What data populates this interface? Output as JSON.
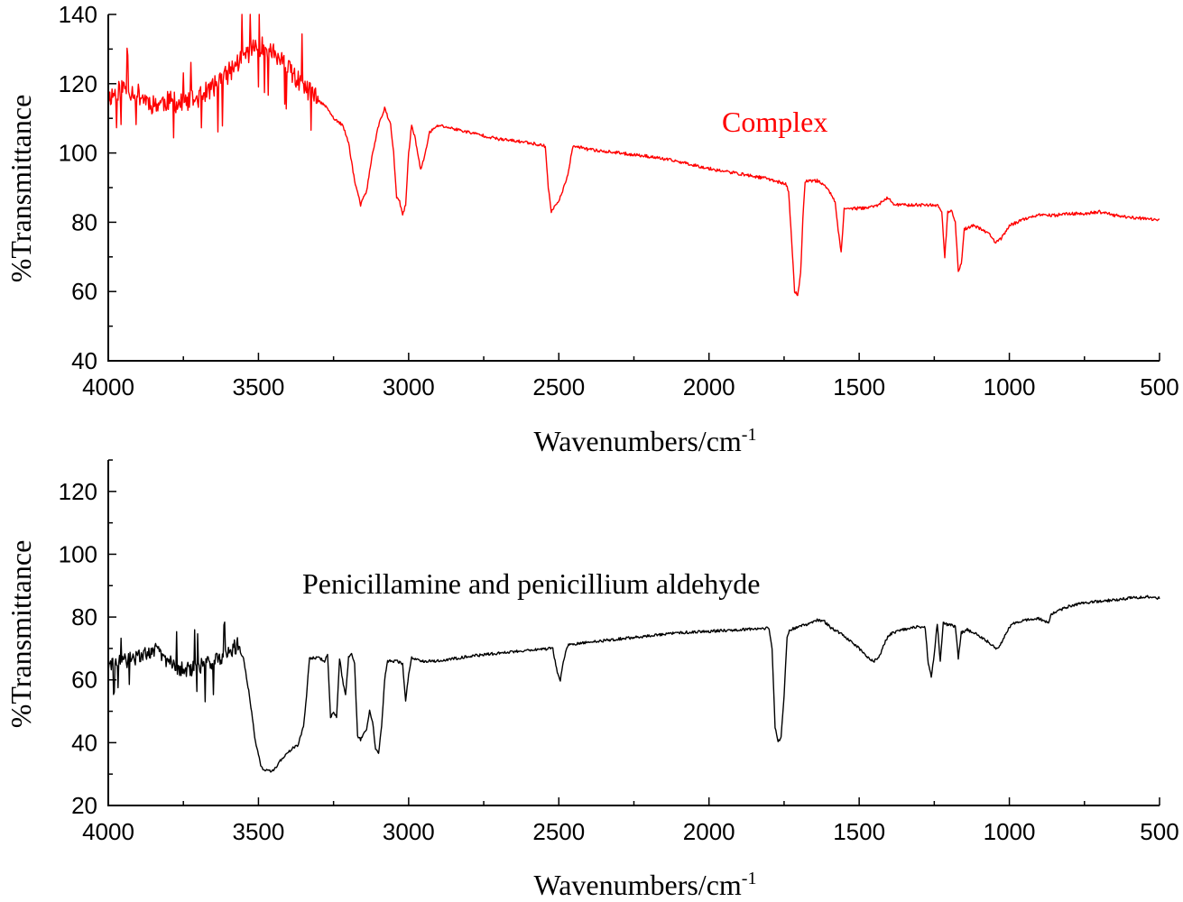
{
  "chart_data": [
    {
      "type": "line",
      "xlabel": "Wavenumbers/cm",
      "xlabel_sup": "-1",
      "ylabel": "%Transmittance",
      "xlim": [
        4000,
        500
      ],
      "ylim": [
        40,
        140
      ],
      "x_ticks": [
        4000,
        3500,
        3000,
        2500,
        2000,
        1500,
        1000,
        500
      ],
      "y_ticks": [
        40,
        60,
        80,
        100,
        120,
        140
      ],
      "grid": false,
      "series": [
        {
          "name": "Complex",
          "color": "#ff0000",
          "noise_above": 3300,
          "noise_amp": 6,
          "points": [
            [
              4000,
              116
            ],
            [
              3950,
              119
            ],
            [
              3900,
              117
            ],
            [
              3850,
              114
            ],
            [
              3800,
              115
            ],
            [
              3750,
              114
            ],
            [
              3700,
              116
            ],
            [
              3650,
              119
            ],
            [
              3600,
              123
            ],
            [
              3550,
              128
            ],
            [
              3500,
              131
            ],
            [
              3450,
              129
            ],
            [
              3400,
              124
            ],
            [
              3350,
              119
            ],
            [
              3300,
              115
            ],
            [
              3270,
              113
            ],
            [
              3250,
              110
            ],
            [
              3220,
              108
            ],
            [
              3200,
              103
            ],
            [
              3180,
              92
            ],
            [
              3160,
              85
            ],
            [
              3140,
              89
            ],
            [
              3120,
              100
            ],
            [
              3100,
              108
            ],
            [
              3080,
              113
            ],
            [
              3060,
              108
            ],
            [
              3050,
              100
            ],
            [
              3040,
              87
            ],
            [
              3030,
              86
            ],
            [
              3020,
              82
            ],
            [
              3010,
              85
            ],
            [
              3000,
              100
            ],
            [
              2990,
              108
            ],
            [
              2980,
              105
            ],
            [
              2960,
              95
            ],
            [
              2950,
              98
            ],
            [
              2930,
              106
            ],
            [
              2900,
              108
            ],
            [
              2850,
              107
            ],
            [
              2800,
              106
            ],
            [
              2700,
              104
            ],
            [
              2600,
              103
            ],
            [
              2545,
              102
            ],
            [
              2535,
              90
            ],
            [
              2525,
              83
            ],
            [
              2510,
              85
            ],
            [
              2490,
              88
            ],
            [
              2470,
              94
            ],
            [
              2455,
              101
            ],
            [
              2450,
              102
            ],
            [
              2400,
              101
            ],
            [
              2300,
              100
            ],
            [
              2200,
              99
            ],
            [
              2100,
              97.5
            ],
            [
              2000,
              95.5
            ],
            [
              1900,
              94
            ],
            [
              1800,
              92.5
            ],
            [
              1745,
              91
            ],
            [
              1735,
              89
            ],
            [
              1725,
              75
            ],
            [
              1715,
              60
            ],
            [
              1705,
              59
            ],
            [
              1695,
              65
            ],
            [
              1688,
              80
            ],
            [
              1680,
              92
            ],
            [
              1660,
              92
            ],
            [
              1640,
              92
            ],
            [
              1620,
              91
            ],
            [
              1600,
              89
            ],
            [
              1580,
              86
            ],
            [
              1570,
              78
            ],
            [
              1560,
              71
            ],
            [
              1550,
              84
            ],
            [
              1500,
              84
            ],
            [
              1450,
              84.5
            ],
            [
              1420,
              86
            ],
            [
              1405,
              87
            ],
            [
              1380,
              85
            ],
            [
              1300,
              85
            ],
            [
              1240,
              85
            ],
            [
              1225,
              83
            ],
            [
              1215,
              70
            ],
            [
              1205,
              83
            ],
            [
              1190,
              83
            ],
            [
              1180,
              80
            ],
            [
              1170,
              66
            ],
            [
              1160,
              68
            ],
            [
              1150,
              78
            ],
            [
              1120,
              79
            ],
            [
              1090,
              78
            ],
            [
              1060,
              76
            ],
            [
              1045,
              74
            ],
            [
              1030,
              75
            ],
            [
              1000,
              79
            ],
            [
              950,
              81
            ],
            [
              900,
              82
            ],
            [
              850,
              82
            ],
            [
              800,
              82.5
            ],
            [
              750,
              82.5
            ],
            [
              700,
              83
            ],
            [
              650,
              82
            ],
            [
              600,
              81.5
            ],
            [
              550,
              81
            ],
            [
              500,
              80.5
            ]
          ]
        }
      ]
    },
    {
      "type": "line",
      "xlabel": "Wavenumbers/cm",
      "xlabel_sup": "-1",
      "ylabel": "%Transmittance",
      "xlim": [
        4000,
        500
      ],
      "ylim": [
        20,
        130
      ],
      "x_ticks": [
        4000,
        3500,
        3000,
        2500,
        2000,
        1500,
        1000,
        500
      ],
      "y_ticks": [
        20,
        40,
        60,
        80,
        100,
        120
      ],
      "grid": false,
      "series": [
        {
          "name": "Penicillamine and penicillium aldehyde",
          "color": "#000000",
          "noise_above": 3560,
          "noise_amp": 5,
          "points": [
            [
              4000,
              64
            ],
            [
              3950,
              66
            ],
            [
              3900,
              67
            ],
            [
              3850,
              70
            ],
            [
              3800,
              66
            ],
            [
              3750,
              63
            ],
            [
              3700,
              64
            ],
            [
              3650,
              66
            ],
            [
              3600,
              69
            ],
            [
              3570,
              71
            ],
            [
              3550,
              67
            ],
            [
              3530,
              55
            ],
            [
              3510,
              40
            ],
            [
              3490,
              32
            ],
            [
              3470,
              31
            ],
            [
              3450,
              31
            ],
            [
              3430,
              34
            ],
            [
              3410,
              36
            ],
            [
              3390,
              38
            ],
            [
              3370,
              39
            ],
            [
              3350,
              45
            ],
            [
              3340,
              55
            ],
            [
              3330,
              67
            ],
            [
              3300,
              67
            ],
            [
              3280,
              66
            ],
            [
              3270,
              68
            ],
            [
              3260,
              48
            ],
            [
              3250,
              50
            ],
            [
              3240,
              48
            ],
            [
              3230,
              67
            ],
            [
              3220,
              60
            ],
            [
              3210,
              55
            ],
            [
              3200,
              67
            ],
            [
              3190,
              68
            ],
            [
              3180,
              65
            ],
            [
              3170,
              42
            ],
            [
              3160,
              41
            ],
            [
              3150,
              43
            ],
            [
              3140,
              44
            ],
            [
              3130,
              50
            ],
            [
              3120,
              47
            ],
            [
              3110,
              38
            ],
            [
              3100,
              37
            ],
            [
              3090,
              45
            ],
            [
              3080,
              60
            ],
            [
              3070,
              66
            ],
            [
              3040,
              66
            ],
            [
              3020,
              65
            ],
            [
              3010,
              53
            ],
            [
              3000,
              62
            ],
            [
              2990,
              67
            ],
            [
              2950,
              66
            ],
            [
              2900,
              66
            ],
            [
              2800,
              67.5
            ],
            [
              2700,
              68.5
            ],
            [
              2600,
              69.5
            ],
            [
              2520,
              70
            ],
            [
              2505,
              62
            ],
            [
              2495,
              60
            ],
            [
              2485,
              66
            ],
            [
              2470,
              71
            ],
            [
              2400,
              72
            ],
            [
              2300,
              73
            ],
            [
              2200,
              74
            ],
            [
              2100,
              75
            ],
            [
              2000,
              75.5
            ],
            [
              1900,
              76
            ],
            [
              1800,
              76.5
            ],
            [
              1790,
              70
            ],
            [
              1780,
              45
            ],
            [
              1770,
              40
            ],
            [
              1760,
              42
            ],
            [
              1750,
              55
            ],
            [
              1740,
              74
            ],
            [
              1730,
              76
            ],
            [
              1700,
              77
            ],
            [
              1660,
              78
            ],
            [
              1640,
              79
            ],
            [
              1620,
              79
            ],
            [
              1600,
              77
            ],
            [
              1550,
              74
            ],
            [
              1500,
              70
            ],
            [
              1470,
              67
            ],
            [
              1450,
              66
            ],
            [
              1430,
              68
            ],
            [
              1410,
              73
            ],
            [
              1390,
              75
            ],
            [
              1350,
              76
            ],
            [
              1300,
              77
            ],
            [
              1280,
              76.5
            ],
            [
              1270,
              65
            ],
            [
              1260,
              61
            ],
            [
              1250,
              68
            ],
            [
              1240,
              78
            ],
            [
              1230,
              66
            ],
            [
              1220,
              78
            ],
            [
              1180,
              77
            ],
            [
              1170,
              67
            ],
            [
              1160,
              75
            ],
            [
              1140,
              76
            ],
            [
              1100,
              74
            ],
            [
              1070,
              72
            ],
            [
              1045,
              70
            ],
            [
              1030,
              71
            ],
            [
              1010,
              75
            ],
            [
              990,
              78
            ],
            [
              950,
              79
            ],
            [
              900,
              79.5
            ],
            [
              870,
              78
            ],
            [
              860,
              81
            ],
            [
              800,
              83.5
            ],
            [
              750,
              84.5
            ],
            [
              700,
              85
            ],
            [
              650,
              85.5
            ],
            [
              600,
              86
            ],
            [
              550,
              86.5
            ],
            [
              500,
              86
            ]
          ]
        }
      ]
    }
  ]
}
